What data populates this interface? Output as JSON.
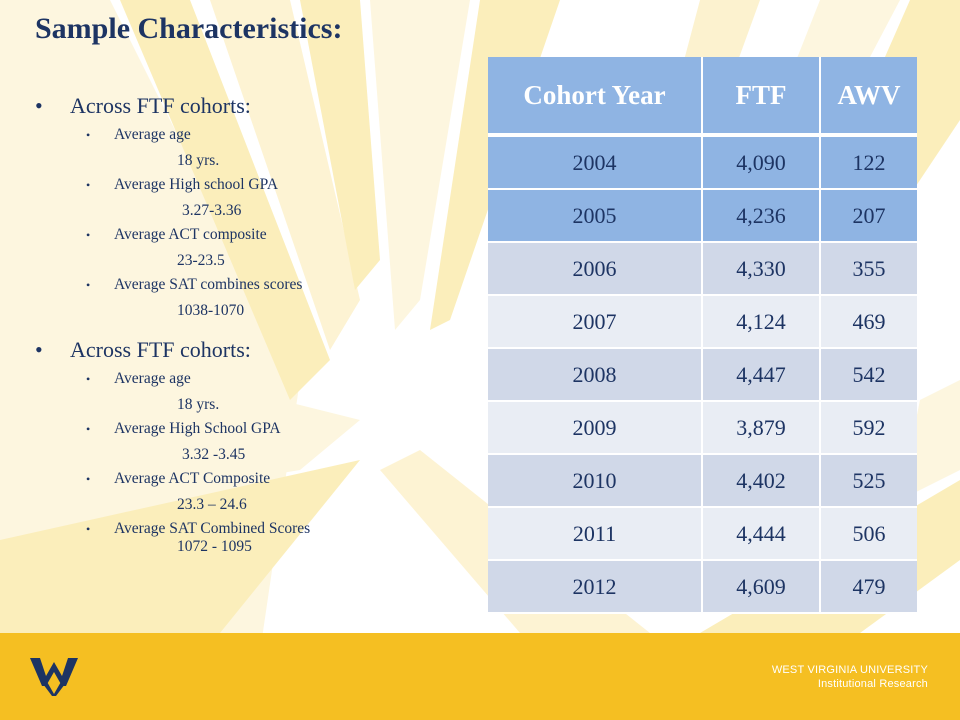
{
  "title": "Sample Characteristics",
  "title_colon": ":",
  "groups": [
    {
      "heading": "Across FTF cohorts:",
      "items": [
        {
          "label": "Average age",
          "value": "18 yrs."
        },
        {
          "label": "Average High school GPA",
          "value": "3.27-3.36"
        },
        {
          "label": "Average ACT composite",
          "value": "23-23.5"
        },
        {
          "label": "Average SAT combines scores",
          "value": "1038-1070"
        }
      ]
    },
    {
      "heading": "Across FTF cohorts:",
      "items": [
        {
          "label": "Average age",
          "value": "18 yrs."
        },
        {
          "label": "Average High School GPA",
          "value": "3.32 -3.45"
        },
        {
          "label": "Average ACT Composite",
          "value": "23.3 – 24.6"
        },
        {
          "label": "Average SAT Combined Scores",
          "value": "1072 - 1095"
        }
      ]
    }
  ],
  "table": {
    "headers": [
      "Cohort Year",
      "FTF",
      "AWV"
    ],
    "rows": [
      [
        "2004",
        "4,090",
        "122"
      ],
      [
        "2005",
        "4,236",
        "207"
      ],
      [
        "2006",
        "4,330",
        "355"
      ],
      [
        "2007",
        "4,124",
        "469"
      ],
      [
        "2008",
        "4,447",
        "542"
      ],
      [
        "2009",
        "3,879",
        "592"
      ],
      [
        "2010",
        "4,402",
        "525"
      ],
      [
        "2011",
        "4,444",
        "506"
      ],
      [
        "2012",
        "4,609",
        "479"
      ]
    ]
  },
  "footer": {
    "line1": "WEST VIRGINIA UNIVERSITY",
    "line2": "Institutional Research",
    "logo": "wv-logo-icon"
  },
  "colors": {
    "text_navy": "#1d3463",
    "table_header": "#8fb4e3",
    "row_mid": "#d0d8e8",
    "row_light": "#e9edf4",
    "footer_gold": "#f5bf22"
  }
}
